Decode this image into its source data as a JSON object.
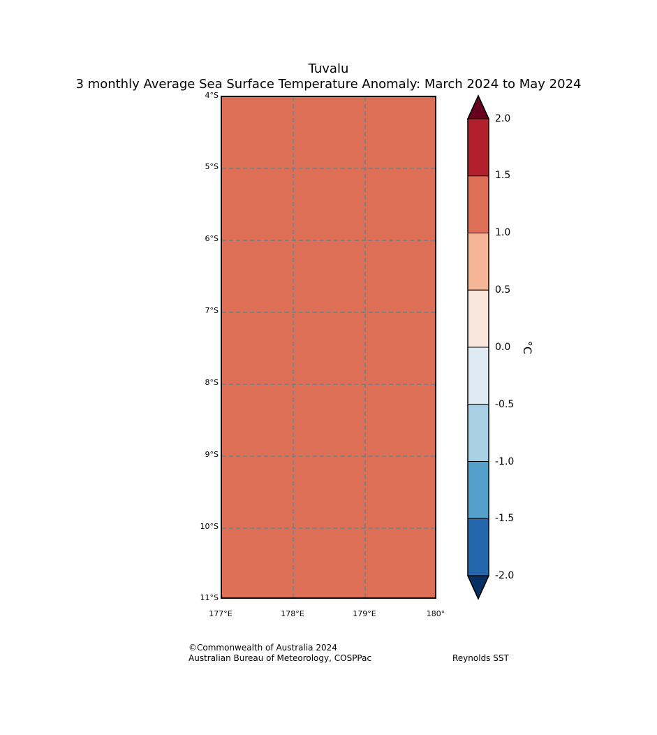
{
  "title": {
    "region": "Tuvalu",
    "subtitle": "3 monthly Average Sea Surface Temperature Anomaly: March 2024 to May 2024"
  },
  "map": {
    "fill_value_degC": 1.25,
    "fill_color": "#dd6f57",
    "lat_labels": [
      "4°S",
      "5°S",
      "6°S",
      "7°S",
      "8°S",
      "9°S",
      "10°S",
      "11°S"
    ],
    "lon_labels": [
      "177°E",
      "178°E",
      "179°E",
      "180°"
    ]
  },
  "colorbar": {
    "units": "°C",
    "tick_labels": [
      "2.0",
      "1.5",
      "1.0",
      "0.5",
      "0.0",
      "-0.5",
      "-1.0",
      "-1.5",
      "-2.0"
    ],
    "over_color": "#67001f",
    "under_color": "#053061",
    "bands_top_to_bottom": [
      {
        "range": "1.5 to 2.0",
        "color": "#b2202e"
      },
      {
        "range": "1.0 to 1.5",
        "color": "#dd6f57"
      },
      {
        "range": "0.5 to 1.0",
        "color": "#f5b597"
      },
      {
        "range": "0.0 to 0.5",
        "color": "#f9e6dd"
      },
      {
        "range": "-0.5 to 0.0",
        "color": "#deebf2"
      },
      {
        "range": "-1.0 to -0.5",
        "color": "#a8cfe3"
      },
      {
        "range": "-1.5 to -1.0",
        "color": "#559fcb"
      },
      {
        "range": "-2.0 to -1.5",
        "color": "#2467ad"
      }
    ]
  },
  "footer": {
    "copyright": "©Commonwealth of Australia 2024",
    "credit": "Australian Bureau of Meteorology, COSPPac",
    "source": "Reynolds SST"
  }
}
